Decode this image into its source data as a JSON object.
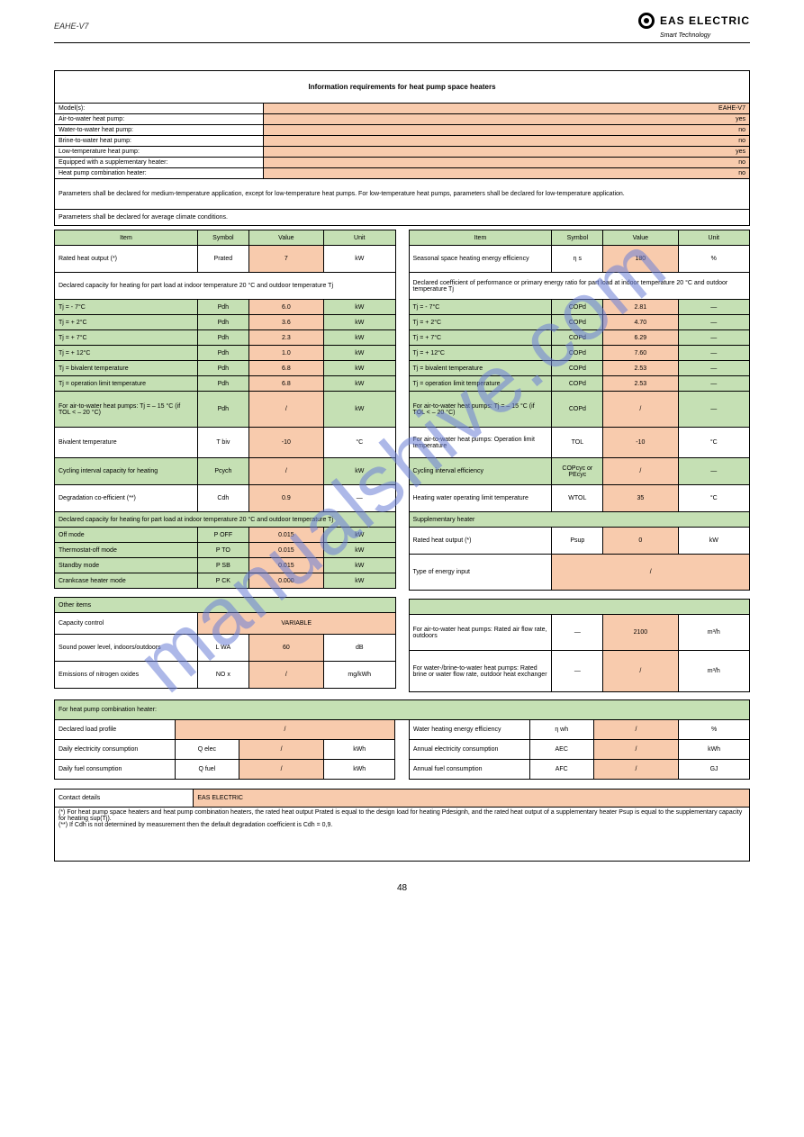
{
  "colors": {
    "green": "#c5e0b4",
    "orange": "#f8cbad",
    "white": "#ffffff",
    "border": "#000000",
    "watermark": "#6b7fd7"
  },
  "header": {
    "model": "EAHE-V7",
    "brand_name": "EAS ELECTRIC",
    "brand_sub": "Smart Technology"
  },
  "watermark": "manualshive.com",
  "page_number": "48",
  "info": {
    "title": "Information requirements for heat pump space heaters",
    "rows": [
      {
        "label": "Model(s):",
        "value": "EAHE-V7"
      },
      {
        "label": "Air-to-water heat pump:",
        "value": "yes"
      },
      {
        "label": "Water-to-water heat pump:",
        "value": "no"
      },
      {
        "label": "Brine-to-water heat pump:",
        "value": "no"
      },
      {
        "label": "Low-temperature heat pump:",
        "value": "yes"
      },
      {
        "label": "Equipped with a supplementary heater:",
        "value": "no"
      },
      {
        "label": "Heat pump combination heater:",
        "value": "no"
      }
    ],
    "note": "Parameters shall be declared for medium-temperature application, except for low-temperature heat pumps. For low-temperature heat pumps, parameters shall be declared for low-temperature application.",
    "climate": "Parameters shall be declared for average climate conditions."
  },
  "columns": {
    "heads": {
      "item": "Item",
      "symbol": "Symbol",
      "value": "Value",
      "unit": "Unit"
    },
    "left": {
      "rated": {
        "item": "Rated heat output",
        "sub": "(*)",
        "sym": "Prated",
        "val": "7",
        "unit": "kW"
      },
      "section1_title": "Declared capacity for heating for part load at indoor temperature 20 °C and outdoor temperature Tj",
      "rows1": [
        {
          "item": "Tj = - 7°C",
          "sym": "Pdh",
          "val": "6.0",
          "unit": "kW"
        },
        {
          "item": "Tj = + 2°C",
          "sym": "Pdh",
          "val": "3.6",
          "unit": "kW"
        },
        {
          "item": "Tj = + 7°C",
          "sym": "Pdh",
          "val": "2.3",
          "unit": "kW"
        },
        {
          "item": "Tj = + 12°C",
          "sym": "Pdh",
          "val": "1.0",
          "unit": "kW"
        },
        {
          "item": "Tj = bivalent temperature",
          "sym": "Pdh",
          "val": "6.8",
          "unit": "kW"
        },
        {
          "item": "Tj = operation limit temperature",
          "sym": "Pdh",
          "val": "6.8",
          "unit": "kW"
        },
        {
          "item": "For air-to-water heat pumps: Tj = – 15 °C (if TOL < – 20 °C)",
          "sym": "Pdh",
          "val": "/",
          "unit": "kW"
        }
      ],
      "biv": {
        "item": "Bivalent temperature",
        "sym": "T biv",
        "val": "-10",
        "unit": "°C"
      },
      "cyc": {
        "item": "Cycling interval capacity for heating",
        "sym": "Pcych",
        "val": "/",
        "unit": "kW"
      },
      "deg": {
        "item": "Degradation co-efficient (**)",
        "sym": "Cdh",
        "val": "0.9",
        "unit": "—"
      },
      "section2_title": "Declared capacity for heating for part load at indoor temperature 20 °C and outdoor temperature Tj",
      "rows2": [
        {
          "item": "Off mode",
          "sym": "P OFF",
          "val": "0.015",
          "unit": "kW"
        },
        {
          "item": "Thermostat-off mode",
          "sym": "P TO",
          "val": "0.015",
          "unit": "kW"
        },
        {
          "item": "Standby mode",
          "sym": "P SB",
          "val": "0.015",
          "unit": "kW"
        },
        {
          "item": "Crankcase heater mode",
          "sym": "P CK",
          "val": "0.000",
          "unit": "kW"
        }
      ],
      "other_title": "Other items",
      "cap_ctrl": {
        "item": "Capacity control",
        "val": "VARIABLE"
      },
      "sound_in": {
        "item": "Sound power level, indoors/outdoors",
        "sym": "L WA",
        "val": "60",
        "unit": "dB"
      },
      "nox": {
        "item": "Emissions of nitrogen oxides",
        "sym": "NO x",
        "val": "/",
        "unit": "mg/kWh"
      }
    },
    "right": {
      "eff": {
        "item": "Seasonal space heating energy efficiency",
        "sym": "η s",
        "val": "180",
        "unit": "%"
      },
      "section1_title": "Declared coefficient of performance or primary energy ratio for part load at indoor temperature 20 °C and outdoor temperature Tj",
      "rows1": [
        {
          "item": "Tj = - 7°C",
          "sym": "COPd",
          "val": "2.81",
          "unit": "—"
        },
        {
          "item": "Tj = + 2°C",
          "sym": "COPd",
          "val": "4.70",
          "unit": "—"
        },
        {
          "item": "Tj = + 7°C",
          "sym": "COPd",
          "val": "6.29",
          "unit": "—"
        },
        {
          "item": "Tj = + 12°C",
          "sym": "COPd",
          "val": "7.60",
          "unit": "—"
        },
        {
          "item": "Tj = bivalent temperature",
          "sym": "COPd",
          "val": "2.53",
          "unit": "—"
        },
        {
          "item": "Tj = operation limit temperature",
          "sym": "COPd",
          "val": "2.53",
          "unit": "—"
        },
        {
          "item": "For air-to-water heat pumps: Tj = – 15 °C (if TOL < – 20 °C)",
          "sym": "COPd",
          "val": "/",
          "unit": "—"
        }
      ],
      "tol": {
        "item": "For air-to-water heat pumps: Operation limit temperature",
        "sym": "TOL",
        "val": "-10",
        "unit": "°C"
      },
      "cyc": {
        "item": "Cycling interval efficiency",
        "sym": "COPcyc or PEcyc",
        "val": "/",
        "unit": "—"
      },
      "wtol": {
        "item": "Heating water operating limit temperature",
        "sym": "WTOL",
        "val": "35",
        "unit": "°C"
      },
      "supp_title": "Supplementary heater",
      "psup": {
        "item": "Rated heat output (*)",
        "sym": "Psup",
        "val": "0",
        "unit": "kW"
      },
      "input_type": {
        "item": "Type of energy input",
        "val": "/"
      },
      "air_flow": {
        "item": "For air-to-water heat pumps: Rated air flow rate, outdoors",
        "sym": "—",
        "val": "2100",
        "unit": "m³/h"
      },
      "water_flow": {
        "item": "For water-/brine-to-water heat pumps: Rated brine or water flow rate, outdoor heat exchanger",
        "sym": "—",
        "val": "/",
        "unit": "m³/h"
      }
    }
  },
  "combi": {
    "title": "For heat pump combination heater:",
    "left": [
      {
        "item": "Declared load profile",
        "val": "/",
        "span": true
      },
      {
        "item": "Daily electricity consumption",
        "sym": "Q elec",
        "val": "/",
        "unit": "kWh"
      },
      {
        "item": "Daily fuel consumption",
        "sym": "Q fuel",
        "val": "/",
        "unit": "kWh"
      }
    ],
    "right": [
      {
        "item": "Water heating energy efficiency",
        "sym": "η wh",
        "val": "/",
        "unit": "%"
      },
      {
        "item": "Annual electricity consumption",
        "sym": "AEC",
        "val": "/",
        "unit": "kWh"
      },
      {
        "item": "Annual fuel consumption",
        "sym": "AFC",
        "val": "/",
        "unit": "GJ"
      }
    ]
  },
  "contact": {
    "label": "Contact details",
    "value": "EAS ELECTRIC",
    "note": "(*) For heat pump space heaters and heat pump combination heaters, the rated heat output Prated is equal to the design load for heating Pdesignh, and the rated heat output of a supplementary heater Psup is equal to the supplementary capacity for heating sup(Tj).\n(**) If Cdh is not determined by measurement then the default degradation coefficient is Cdh = 0,9."
  }
}
